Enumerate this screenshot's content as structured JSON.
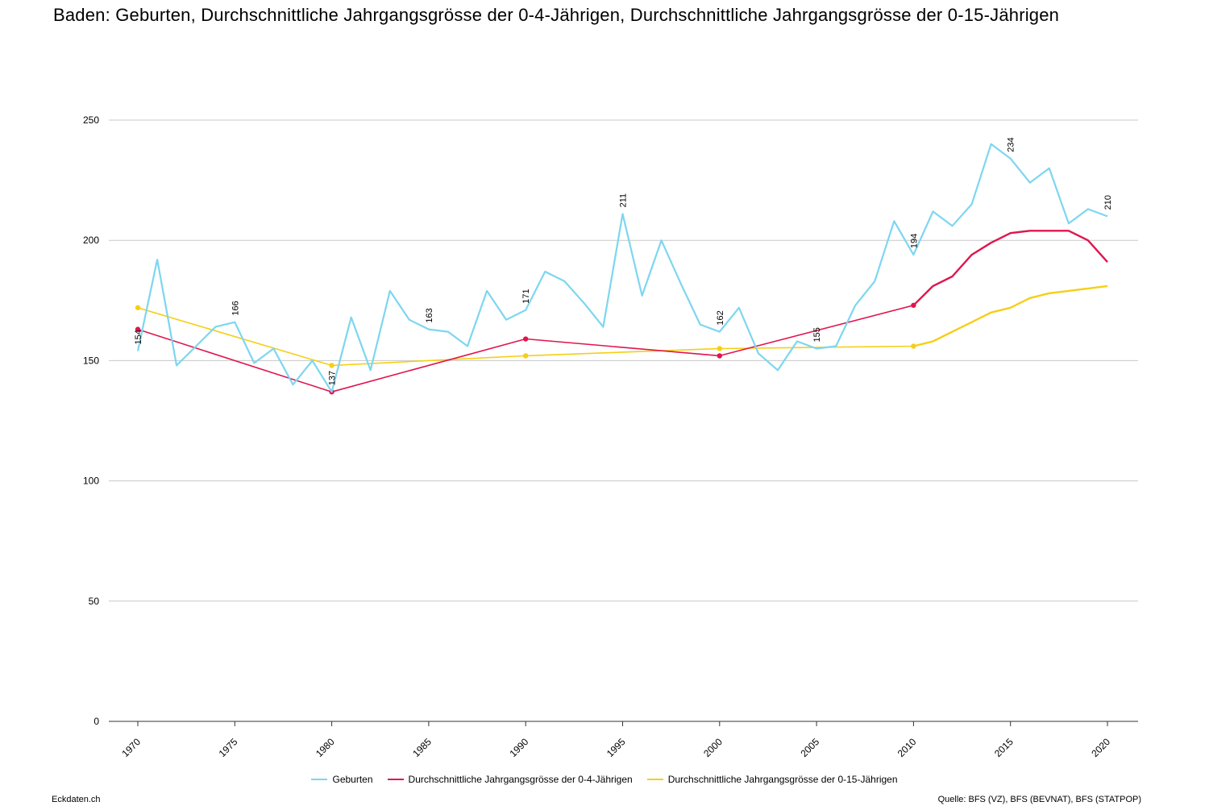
{
  "title": "Baden: Geburten, Durchschnittliche Jahrgangsgrösse der 0-4-Jährigen, Durchschnittliche Jahrgangsgrösse der 0-15-Jährigen",
  "footer": {
    "site": "Eckdaten.ch",
    "source": "Quelle: BFS (VZ), BFS (BEVNAT), BFS (STATPOP)"
  },
  "chart_data": {
    "type": "line",
    "title": "Baden: Geburten, Durchschnittliche Jahrgangsgrösse der 0-4-Jährigen, Durchschnittliche Jahrgangsgrösse der 0-15-Jährigen",
    "xlim": [
      1970,
      2020
    ],
    "ylim": [
      0,
      250
    ],
    "yticks": [
      0,
      50,
      100,
      150,
      200,
      250
    ],
    "xticks": [
      1970,
      1975,
      1980,
      1985,
      1990,
      1995,
      2000,
      2005,
      2010,
      2015,
      2020
    ],
    "grid": true,
    "legend_position": "bottom",
    "series": [
      {
        "name": "Geburten",
        "color": "#7dd6f0",
        "marker": false,
        "points": [
          [
            1970,
            154
          ],
          [
            1971,
            192
          ],
          [
            1972,
            148
          ],
          [
            1973,
            156
          ],
          [
            1974,
            164
          ],
          [
            1975,
            166
          ],
          [
            1976,
            149
          ],
          [
            1977,
            155
          ],
          [
            1978,
            140
          ],
          [
            1979,
            150
          ],
          [
            1980,
            137
          ],
          [
            1981,
            168
          ],
          [
            1982,
            146
          ],
          [
            1983,
            179
          ],
          [
            1984,
            167
          ],
          [
            1985,
            163
          ],
          [
            1986,
            162
          ],
          [
            1987,
            156
          ],
          [
            1988,
            179
          ],
          [
            1989,
            167
          ],
          [
            1990,
            171
          ],
          [
            1991,
            187
          ],
          [
            1992,
            183
          ],
          [
            1993,
            174
          ],
          [
            1994,
            164
          ],
          [
            1995,
            211
          ],
          [
            1996,
            177
          ],
          [
            1997,
            200
          ],
          [
            1998,
            182
          ],
          [
            1999,
            165
          ],
          [
            2000,
            162
          ],
          [
            2001,
            172
          ],
          [
            2002,
            153
          ],
          [
            2003,
            146
          ],
          [
            2004,
            158
          ],
          [
            2005,
            155
          ],
          [
            2006,
            156
          ],
          [
            2007,
            173
          ],
          [
            2008,
            183
          ],
          [
            2009,
            208
          ],
          [
            2010,
            194
          ],
          [
            2011,
            212
          ],
          [
            2012,
            206
          ],
          [
            2013,
            215
          ],
          [
            2014,
            240
          ],
          [
            2015,
            234
          ],
          [
            2016,
            224
          ],
          [
            2017,
            230
          ],
          [
            2018,
            207
          ],
          [
            2019,
            213
          ],
          [
            2020,
            210
          ]
        ],
        "labels": [
          {
            "x": 1970,
            "y": 154,
            "text": "154"
          },
          {
            "x": 1975,
            "y": 166,
            "text": "166"
          },
          {
            "x": 1980,
            "y": 137,
            "text": "137"
          },
          {
            "x": 1985,
            "y": 163,
            "text": "163"
          },
          {
            "x": 1990,
            "y": 171,
            "text": "171"
          },
          {
            "x": 1995,
            "y": 211,
            "text": "211"
          },
          {
            "x": 2000,
            "y": 162,
            "text": "162"
          },
          {
            "x": 2005,
            "y": 155,
            "text": "155"
          },
          {
            "x": 2010,
            "y": 194,
            "text": "194"
          },
          {
            "x": 2015,
            "y": 234,
            "text": "234"
          },
          {
            "x": 2020,
            "y": 210,
            "text": "210"
          }
        ]
      },
      {
        "name": "Durchschnittliche Jahrgangsgrösse der 0-4-Jährigen",
        "color": "#e0154e",
        "marker_years": [
          1970,
          1980,
          1990,
          2000,
          2010
        ],
        "points": [
          [
            1970,
            163
          ],
          [
            1980,
            137
          ],
          [
            1990,
            159
          ],
          [
            2000,
            152
          ],
          [
            2010,
            173
          ],
          [
            2011,
            181
          ],
          [
            2012,
            185
          ],
          [
            2013,
            194
          ],
          [
            2014,
            199
          ],
          [
            2015,
            203
          ],
          [
            2016,
            204
          ],
          [
            2017,
            204
          ],
          [
            2018,
            204
          ],
          [
            2019,
            200
          ],
          [
            2020,
            191
          ]
        ]
      },
      {
        "name": "Durchschnittliche Jahrgangsgrösse der 0-15-Jährigen",
        "color": "#f5cf17",
        "marker_years": [
          1970,
          1980,
          1990,
          2000,
          2010
        ],
        "points": [
          [
            1970,
            172
          ],
          [
            1980,
            148
          ],
          [
            1990,
            152
          ],
          [
            2000,
            155
          ],
          [
            2010,
            156
          ],
          [
            2011,
            158
          ],
          [
            2012,
            162
          ],
          [
            2013,
            166
          ],
          [
            2014,
            170
          ],
          [
            2015,
            172
          ],
          [
            2016,
            176
          ],
          [
            2017,
            178
          ],
          [
            2018,
            179
          ],
          [
            2019,
            180
          ],
          [
            2020,
            181
          ]
        ]
      }
    ]
  }
}
